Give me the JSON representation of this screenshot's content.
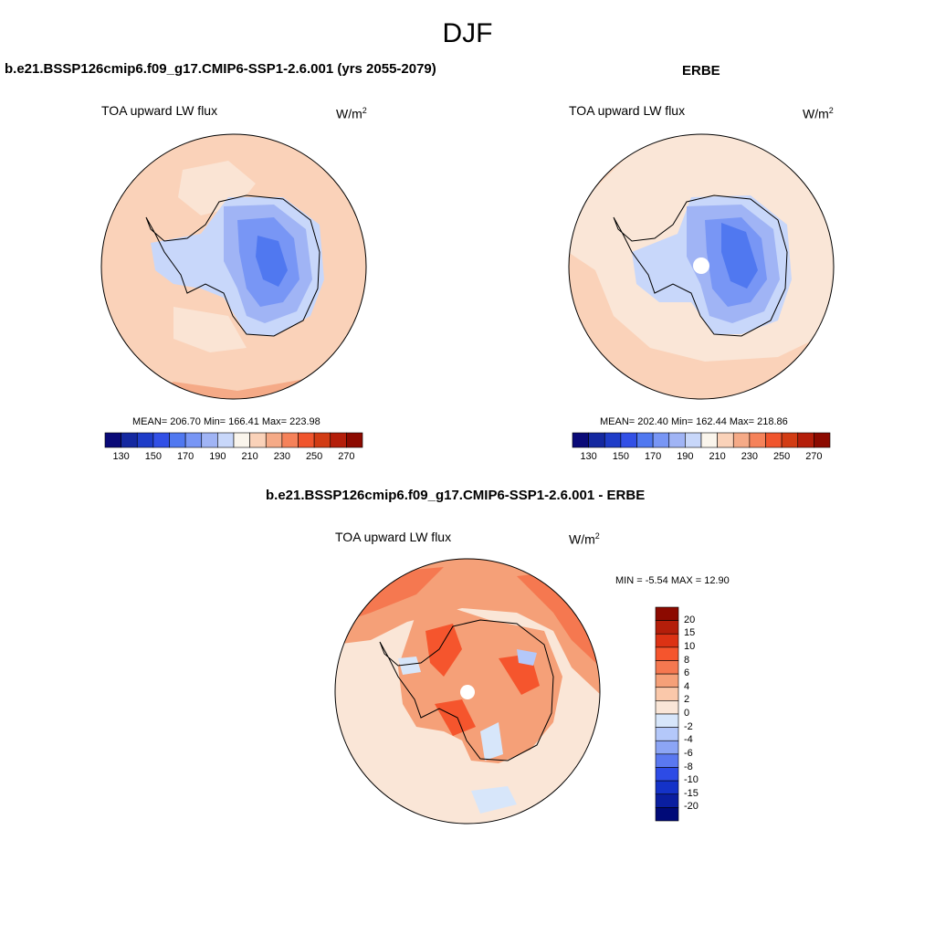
{
  "figure": {
    "title": "DJF"
  },
  "panels": {
    "model": {
      "title": "b.e21.BSSP126cmip6.f09_g17.CMIP6-SSP1-2.6.001 (yrs 2055-2079)",
      "variable": "TOA upward LW flux",
      "units_base": "W/m",
      "units_exp": "2",
      "stats": "MEAN= 206.70  Min= 166.41  Max= 223.98"
    },
    "obs": {
      "title": "ERBE",
      "variable": "TOA upward LW flux",
      "units_base": "W/m",
      "units_exp": "2",
      "stats": "MEAN= 202.40  Min= 162.44  Max= 218.86"
    },
    "diff": {
      "title": "b.e21.BSSP126cmip6.f09_g17.CMIP6-SSP1-2.6.001 - ERBE",
      "variable": "TOA upward LW flux",
      "units_base": "W/m",
      "units_exp": "2",
      "stats": "MIN =  -5.54 MAX =  12.90"
    }
  },
  "colorbars": {
    "abs": {
      "colors": [
        "#0a0a78",
        "#1428a0",
        "#1e3cc8",
        "#3250e6",
        "#5078f0",
        "#7896f5",
        "#a0b4f5",
        "#c8d7fa",
        "#faf5ec",
        "#fad2b9",
        "#f5aa87",
        "#f5825a",
        "#f0552d",
        "#d23c14",
        "#b41e0a",
        "#8c0a00"
      ],
      "tick_labels": [
        "130",
        "150",
        "170",
        "190",
        "210",
        "230",
        "250",
        "270"
      ]
    },
    "diff": {
      "colors": [
        "#8c0a00",
        "#b41e0a",
        "#dc3214",
        "#f5552d",
        "#f57850",
        "#f5a078",
        "#fac8aa",
        "#fae6d7",
        "#d7e6fa",
        "#b4c8fa",
        "#8ca5f5",
        "#5a78f0",
        "#2d4be6",
        "#1432c8",
        "#0a1ea0",
        "#000a78"
      ],
      "tick_labels": [
        "20",
        "15",
        "10",
        "8",
        "6",
        "4",
        "2",
        "0",
        "-2",
        "-4",
        "-6",
        "-8",
        "-10",
        "-15",
        "-20"
      ]
    }
  },
  "map_colors": {
    "ocean_abs": "#fad2b9",
    "ocean_abs_light": "#fae6d7",
    "ocean_abs_warm": "#f5aa87",
    "ice_1": "#c8d7fa",
    "ice_2": "#a0b4f5",
    "ice_3": "#7896f5",
    "ice_4": "#5078f0",
    "diff_base": "#fae6d7",
    "diff_pos": "#f5a078",
    "diff_pos_strong": "#f57850",
    "diff_pos_max": "#f5552d",
    "diff_neg": "#d7e6fa",
    "diff_neg_strong": "#b4c8fa"
  }
}
